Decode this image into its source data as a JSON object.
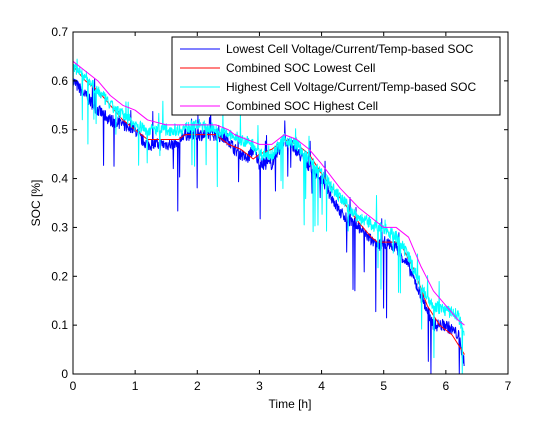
{
  "chart_data": {
    "type": "line",
    "xlabel": "Time [h]",
    "ylabel": "SOC [%]",
    "xlim": [
      0,
      7
    ],
    "ylim": [
      0,
      0.7
    ],
    "xticks": [
      "0",
      "1",
      "2",
      "3",
      "4",
      "5",
      "6",
      "7"
    ],
    "yticks": [
      "0",
      "0.1",
      "0.2",
      "0.3",
      "0.4",
      "0.5",
      "0.6",
      "0.7"
    ],
    "grid": false,
    "legend_position": "top-right",
    "series": [
      {
        "name": "Lowest Cell Voltage/Current/Temp-based SOC",
        "color": "#0000ff",
        "noisy": true,
        "x": [
          0,
          0.2,
          0.4,
          0.6,
          0.8,
          1.0,
          1.1,
          1.2,
          1.5,
          1.7,
          1.75,
          2.0,
          2.3,
          2.5,
          2.6,
          2.8,
          2.9,
          3.0,
          3.1,
          3.2,
          3.4,
          3.5,
          3.7,
          4.0,
          4.3,
          4.6,
          4.9,
          5.0,
          5.2,
          5.4,
          5.6,
          5.8,
          6.0,
          6.2,
          6.3
        ],
        "y": [
          0.6,
          0.57,
          0.54,
          0.52,
          0.51,
          0.5,
          0.48,
          0.47,
          0.47,
          0.47,
          0.49,
          0.49,
          0.49,
          0.48,
          0.46,
          0.44,
          0.46,
          0.43,
          0.43,
          0.43,
          0.48,
          0.47,
          0.44,
          0.4,
          0.33,
          0.3,
          0.26,
          0.27,
          0.26,
          0.22,
          0.16,
          0.1,
          0.1,
          0.08,
          0.02
        ]
      },
      {
        "name": "Combined SOC Lowest Cell",
        "color": "#ff0000",
        "noisy": false,
        "x": [
          0,
          0.2,
          0.4,
          0.6,
          0.8,
          1.0,
          1.2,
          1.5,
          1.7,
          1.8,
          2.0,
          2.3,
          2.5,
          2.7,
          2.9,
          3.0,
          3.2,
          3.4,
          3.6,
          3.8,
          4.0,
          4.3,
          4.6,
          4.8,
          4.9,
          5.0,
          5.2,
          5.3,
          5.5,
          5.7,
          5.9,
          6.1,
          6.3
        ],
        "y": [
          0.63,
          0.6,
          0.58,
          0.55,
          0.52,
          0.5,
          0.48,
          0.48,
          0.48,
          0.49,
          0.49,
          0.49,
          0.47,
          0.46,
          0.44,
          0.45,
          0.46,
          0.48,
          0.47,
          0.45,
          0.41,
          0.36,
          0.31,
          0.28,
          0.27,
          0.27,
          0.27,
          0.26,
          0.21,
          0.14,
          0.1,
          0.08,
          0.04
        ]
      },
      {
        "name": "Highest Cell Voltage/Current/Temp-based SOC",
        "color": "#00ffff",
        "noisy": true,
        "x": [
          0,
          0.2,
          0.4,
          0.6,
          0.8,
          1.0,
          1.2,
          1.5,
          1.7,
          2.0,
          2.3,
          2.5,
          2.7,
          2.9,
          3.0,
          3.1,
          3.2,
          3.4,
          3.6,
          3.8,
          4.0,
          4.3,
          4.6,
          4.9,
          5.0,
          5.2,
          5.4,
          5.6,
          5.8,
          6.0,
          6.2,
          6.3
        ],
        "y": [
          0.63,
          0.61,
          0.58,
          0.55,
          0.53,
          0.51,
          0.5,
          0.5,
          0.5,
          0.51,
          0.5,
          0.49,
          0.48,
          0.47,
          0.45,
          0.45,
          0.45,
          0.48,
          0.47,
          0.44,
          0.41,
          0.36,
          0.32,
          0.3,
          0.3,
          0.28,
          0.24,
          0.18,
          0.14,
          0.13,
          0.12,
          0.08
        ]
      },
      {
        "name": "Combined SOC Highest Cell",
        "color": "#ff00ff",
        "noisy": false,
        "x": [
          0,
          0.2,
          0.4,
          0.6,
          0.8,
          1.0,
          1.2,
          1.5,
          1.7,
          2.0,
          2.3,
          2.5,
          2.6,
          2.8,
          3.0,
          3.2,
          3.4,
          3.6,
          3.8,
          4.0,
          4.3,
          4.6,
          4.9,
          5.0,
          5.2,
          5.4,
          5.6,
          5.8,
          6.0,
          6.2,
          6.3
        ],
        "y": [
          0.64,
          0.62,
          0.6,
          0.57,
          0.55,
          0.54,
          0.52,
          0.51,
          0.51,
          0.51,
          0.51,
          0.5,
          0.49,
          0.48,
          0.47,
          0.47,
          0.49,
          0.48,
          0.46,
          0.43,
          0.38,
          0.34,
          0.31,
          0.3,
          0.3,
          0.28,
          0.22,
          0.17,
          0.14,
          0.11,
          0.1
        ]
      }
    ]
  }
}
